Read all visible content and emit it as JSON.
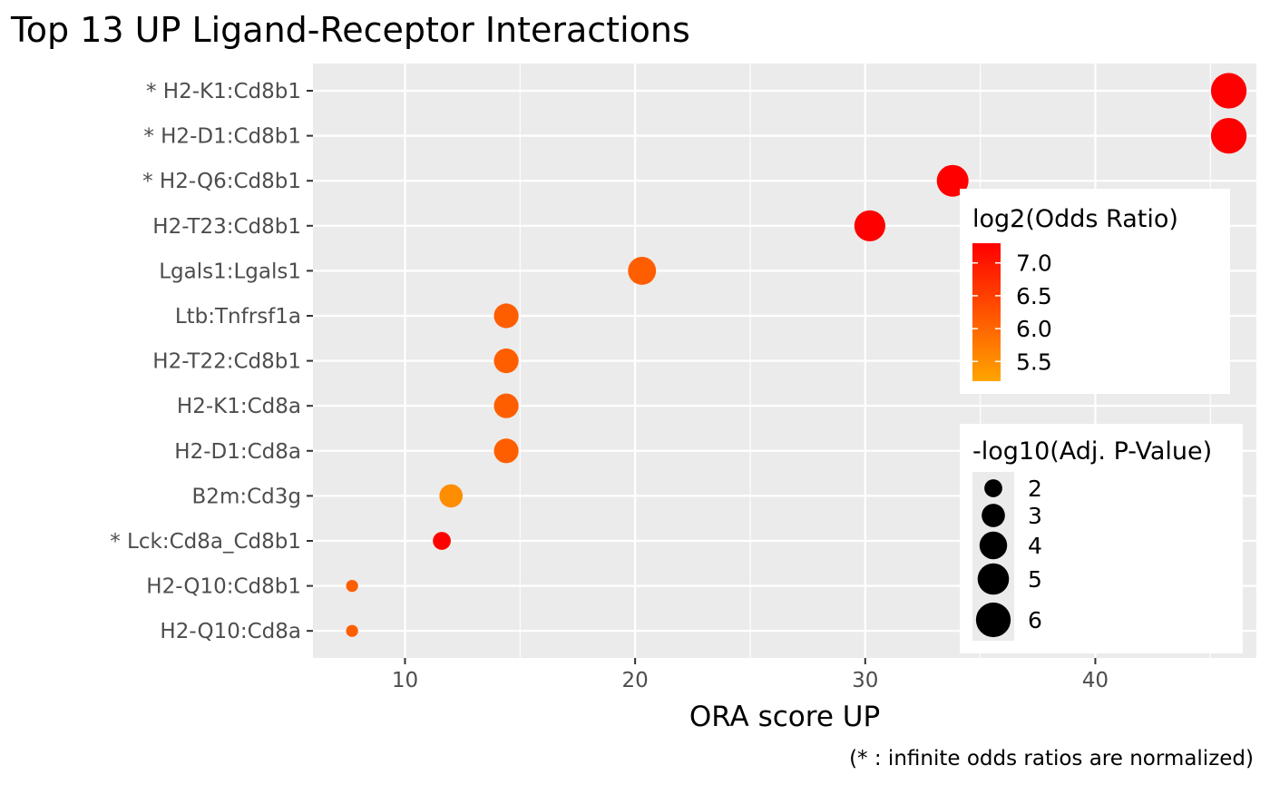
{
  "chart_data": {
    "type": "scatter",
    "title": "Top 13 UP Ligand-Receptor Interactions",
    "xlabel": "ORA score UP",
    "ylabel": "",
    "caption": "(* : infinite odds ratios are normalized)",
    "xlim": [
      6,
      47
    ],
    "xticks": [
      10,
      20,
      30,
      40
    ],
    "grid": true,
    "categories": [
      "* H2-K1:Cd8b1",
      "* H2-D1:Cd8b1",
      "* H2-Q6:Cd8b1",
      "H2-T23:Cd8b1",
      "Lgals1:Lgals1",
      "Ltb:Tnfrsf1a",
      "H2-T22:Cd8b1",
      "H2-K1:Cd8a",
      "H2-D1:Cd8a",
      "B2m:Cd3g",
      "* Lck:Cd8a_Cd8b1",
      "H2-Q10:Cd8b1",
      "H2-Q10:Cd8a"
    ],
    "points": [
      {
        "label": "* H2-K1:Cd8b1",
        "x": 45.8,
        "log2_odds_ratio": 7.3,
        "neg_log10_adj_p": 6.3
      },
      {
        "label": "* H2-D1:Cd8b1",
        "x": 45.8,
        "log2_odds_ratio": 7.3,
        "neg_log10_adj_p": 6.3
      },
      {
        "label": "* H2-Q6:Cd8b1",
        "x": 33.8,
        "log2_odds_ratio": 7.3,
        "neg_log10_adj_p": 5.1
      },
      {
        "label": "H2-T23:Cd8b1",
        "x": 30.2,
        "log2_odds_ratio": 7.3,
        "neg_log10_adj_p": 4.9
      },
      {
        "label": "Lgals1:Lgals1",
        "x": 20.3,
        "log2_odds_ratio": 6.1,
        "neg_log10_adj_p": 4.1
      },
      {
        "label": "Ltb:Tnfrsf1a",
        "x": 14.4,
        "log2_odds_ratio": 6.1,
        "neg_log10_adj_p": 3.3
      },
      {
        "label": "H2-T22:Cd8b1",
        "x": 14.4,
        "log2_odds_ratio": 6.1,
        "neg_log10_adj_p": 3.3
      },
      {
        "label": "H2-K1:Cd8a",
        "x": 14.4,
        "log2_odds_ratio": 6.1,
        "neg_log10_adj_p": 3.3
      },
      {
        "label": "H2-D1:Cd8a",
        "x": 14.4,
        "log2_odds_ratio": 6.1,
        "neg_log10_adj_p": 3.3
      },
      {
        "label": "B2m:Cd3g",
        "x": 12.0,
        "log2_odds_ratio": 5.5,
        "neg_log10_adj_p": 3.0
      },
      {
        "label": "* Lck:Cd8a_Cd8b1",
        "x": 11.6,
        "log2_odds_ratio": 7.3,
        "neg_log10_adj_p": 2.0
      },
      {
        "label": "H2-Q10:Cd8b1",
        "x": 7.7,
        "log2_odds_ratio": 6.1,
        "neg_log10_adj_p": 1.2
      },
      {
        "label": "H2-Q10:Cd8a",
        "x": 7.7,
        "log2_odds_ratio": 6.1,
        "neg_log10_adj_p": 1.2
      }
    ],
    "color_legend": {
      "title": "log2(Odds Ratio)",
      "ticks": [
        "7.0",
        "6.5",
        "6.0",
        "5.5"
      ],
      "range": [
        5.2,
        7.3
      ],
      "low_color": "#ffa500",
      "high_color": "#ff0000"
    },
    "size_legend": {
      "title": "-log10(Adj. P-Value)",
      "ticks": [
        "2",
        "3",
        "4",
        "5",
        "6"
      ],
      "range": [
        1.0,
        6.5
      ]
    },
    "colors": {
      "panel_bg": "#ebebeb",
      "grid": "#ffffff",
      "point_low": "#ffa500",
      "point_high": "#ff0000"
    }
  }
}
